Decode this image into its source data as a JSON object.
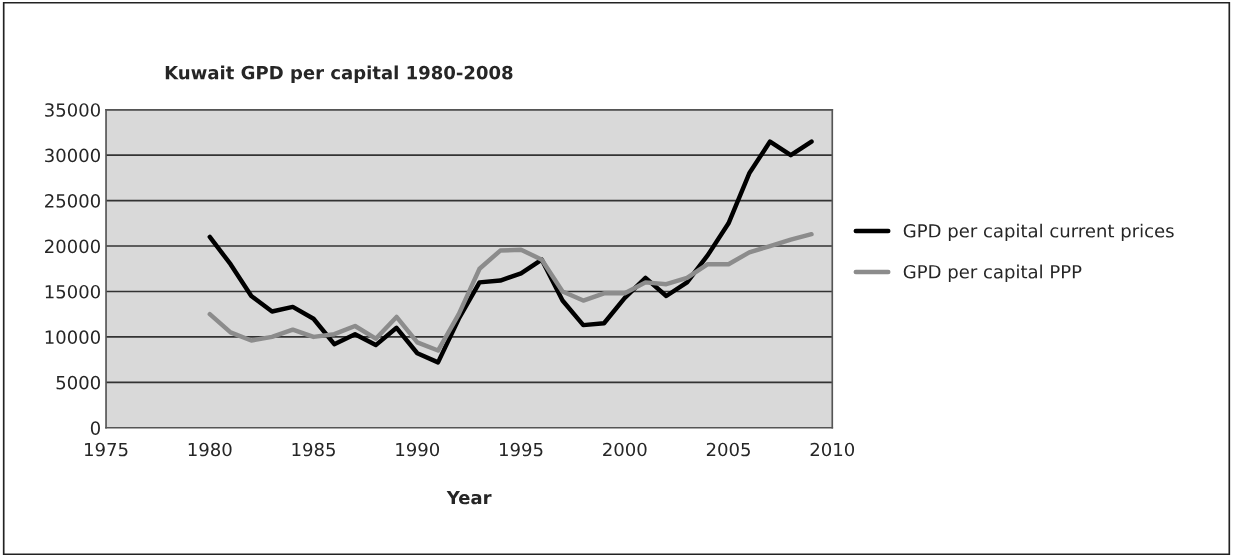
{
  "chart_data": {
    "type": "line",
    "title": "Kuwait GPD per capital 1980-2008",
    "xlabel": "Year",
    "x": [
      1980,
      1981,
      1982,
      1983,
      1984,
      1985,
      1986,
      1987,
      1988,
      1989,
      1990,
      1991,
      1992,
      1993,
      1994,
      1995,
      1996,
      1997,
      1998,
      1999,
      2000,
      2001,
      2002,
      2003,
      2004,
      2005,
      2006,
      2007,
      2008,
      2009
    ],
    "series": [
      {
        "name": "GPD per capital current prices",
        "color": "#000000",
        "values": [
          21000,
          18000,
          14500,
          12800,
          13300,
          12000,
          9200,
          10300,
          9100,
          11000,
          8200,
          7200,
          12000,
          16000,
          16200,
          17000,
          18500,
          14000,
          11300,
          11500,
          14300,
          16500,
          14500,
          16000,
          19000,
          22500,
          28000,
          31500,
          30000,
          31500
        ]
      },
      {
        "name": "GPD per capital PPP",
        "color": "#8c8c8c",
        "values": [
          12500,
          10500,
          9600,
          10000,
          10800,
          10000,
          10300,
          11200,
          9800,
          12200,
          9400,
          8500,
          12500,
          17500,
          19500,
          19600,
          18500,
          15000,
          14000,
          14800,
          14800,
          16000,
          15800,
          16500,
          18000,
          18000,
          19300,
          20000,
          20700,
          21300
        ]
      }
    ],
    "xlim": [
      1975,
      2010
    ],
    "xticks": [
      1975,
      1980,
      1985,
      1990,
      1995,
      2000,
      2005,
      2010
    ],
    "ylim": [
      0,
      35000
    ],
    "yticks": [
      0,
      5000,
      10000,
      15000,
      20000,
      25000,
      30000,
      35000
    ],
    "grid": "y",
    "legend": "right",
    "marker": "none",
    "line_style": "solid"
  }
}
